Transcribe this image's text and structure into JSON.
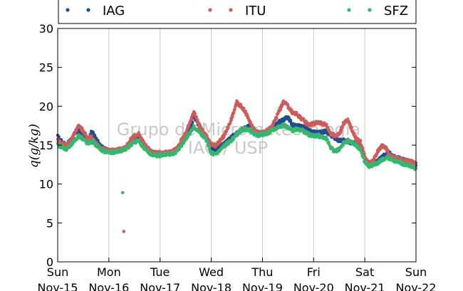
{
  "chart_data": {
    "type": "scatter",
    "ylabel": "q(g/kg)",
    "ylim": [
      0,
      30
    ],
    "yticks": [
      0,
      5,
      10,
      15,
      20,
      25,
      30
    ],
    "xlim": [
      "2015-11-15",
      "2015-11-22"
    ],
    "xticks": [
      {
        "date": "2015-11-15",
        "day": "Sun",
        "label": "Nov-15"
      },
      {
        "date": "2015-11-16",
        "day": "Mon",
        "label": "Nov-16"
      },
      {
        "date": "2015-11-17",
        "day": "Tue",
        "label": "Nov-17"
      },
      {
        "date": "2015-11-18",
        "day": "Wed",
        "label": "Nov-18"
      },
      {
        "date": "2015-11-19",
        "day": "Thu",
        "label": "Nov-19"
      },
      {
        "date": "2015-11-20",
        "day": "Fri",
        "label": "Nov-20"
      },
      {
        "date": "2015-11-21",
        "day": "Sat",
        "label": "Nov-21"
      },
      {
        "date": "2015-11-22",
        "day": "Sun",
        "label": "Nov-22"
      }
    ],
    "grid": "vertical",
    "legend_position": "top",
    "watermark": [
      "Grupo de Micrometeorologia",
      "IAG / USP"
    ],
    "series": [
      {
        "name": "IAG",
        "color": "#1f4e8c",
        "x": [
          "2015-11-15 00:00",
          "2015-11-15 02:00",
          "2015-11-15 04:00",
          "2015-11-15 06:00",
          "2015-11-15 08:00",
          "2015-11-15 10:00",
          "2015-11-15 12:00",
          "2015-11-15 14:00",
          "2015-11-15 16:00",
          "2015-11-15 18:00",
          "2015-11-15 20:00",
          "2015-11-15 22:00",
          "2015-11-16 00:00",
          "2015-11-16 02:00",
          "2015-11-16 04:00",
          "2015-11-16 06:00",
          "2015-11-16 08:00",
          "2015-11-16 10:00",
          "2015-11-16 12:00",
          "2015-11-16 14:00",
          "2015-11-16 16:00",
          "2015-11-16 18:00",
          "2015-11-16 20:00",
          "2015-11-16 22:00",
          "2015-11-17 00:00",
          "2015-11-17 02:00",
          "2015-11-17 04:00",
          "2015-11-17 06:00",
          "2015-11-17 08:00",
          "2015-11-17 10:00",
          "2015-11-17 12:00",
          "2015-11-17 14:00",
          "2015-11-17 16:00",
          "2015-11-17 18:00",
          "2015-11-17 20:00",
          "2015-11-17 22:00",
          "2015-11-18 00:00",
          "2015-11-18 02:00",
          "2015-11-18 04:00",
          "2015-11-18 06:00",
          "2015-11-18 08:00",
          "2015-11-18 10:00",
          "2015-11-18 12:00",
          "2015-11-18 14:00",
          "2015-11-18 16:00",
          "2015-11-18 18:00",
          "2015-11-18 20:00",
          "2015-11-18 22:00",
          "2015-11-19 00:00",
          "2015-11-19 02:00",
          "2015-11-19 04:00",
          "2015-11-19 06:00",
          "2015-11-19 08:00",
          "2015-11-19 10:00",
          "2015-11-19 12:00",
          "2015-11-19 14:00",
          "2015-11-19 16:00",
          "2015-11-19 18:00",
          "2015-11-19 20:00",
          "2015-11-19 22:00",
          "2015-11-20 00:00",
          "2015-11-20 02:00",
          "2015-11-20 04:00",
          "2015-11-20 06:00",
          "2015-11-20 08:00",
          "2015-11-20 10:00",
          "2015-11-20 12:00",
          "2015-11-20 14:00",
          "2015-11-20 16:00",
          "2015-11-20 18:00",
          "2015-11-20 20:00",
          "2015-11-20 22:00",
          "2015-11-21 00:00",
          "2015-11-21 02:00",
          "2015-11-21 04:00",
          "2015-11-21 06:00",
          "2015-11-21 08:00",
          "2015-11-21 10:00",
          "2015-11-21 12:00",
          "2015-11-21 14:00",
          "2015-11-21 16:00",
          "2015-11-21 18:00",
          "2015-11-21 20:00",
          "2015-11-21 22:00",
          "2015-11-22 00:00"
        ],
        "y": [
          16.1,
          15.4,
          15.0,
          15.6,
          16.5,
          17.0,
          16.0,
          15.5,
          16.8,
          15.8,
          14.9,
          14.5,
          14.3,
          14.2,
          14.3,
          14.4,
          14.6,
          15.2,
          15.7,
          15.9,
          15.0,
          14.4,
          14.1,
          13.9,
          13.8,
          13.9,
          13.9,
          14.0,
          14.3,
          15.2,
          16.0,
          17.0,
          18.8,
          17.5,
          16.6,
          15.9,
          14.7,
          14.5,
          14.9,
          15.2,
          15.6,
          16.2,
          16.5,
          16.9,
          17.2,
          17.5,
          17.0,
          16.6,
          16.5,
          16.6,
          17.0,
          17.4,
          18.0,
          18.3,
          18.6,
          17.6,
          17.5,
          17.4,
          17.2,
          16.8,
          16.6,
          16.6,
          16.7,
          16.8,
          16.3,
          15.9,
          15.6,
          15.6,
          15.5,
          15.3,
          15.2,
          15.0,
          13.2,
          12.6,
          12.7,
          12.9,
          13.5,
          13.8,
          13.9,
          13.5,
          13.3,
          13.1,
          12.9,
          12.8,
          12.4
        ]
      },
      {
        "name": "ITU",
        "color": "#cd5c5c",
        "x": [
          "2015-11-15 00:00",
          "2015-11-15 02:00",
          "2015-11-15 04:00",
          "2015-11-15 06:00",
          "2015-11-15 08:00",
          "2015-11-15 10:00",
          "2015-11-15 12:00",
          "2015-11-15 14:00",
          "2015-11-15 16:00",
          "2015-11-15 18:00",
          "2015-11-15 20:00",
          "2015-11-15 22:00",
          "2015-11-16 00:00",
          "2015-11-16 02:00",
          "2015-11-16 04:00",
          "2015-11-16 06:00",
          "2015-11-16 08:00",
          "2015-11-16 10:00",
          "2015-11-16 12:00",
          "2015-11-16 14:00",
          "2015-11-16 16:00",
          "2015-11-16 18:00",
          "2015-11-16 20:00",
          "2015-11-16 22:00",
          "2015-11-17 00:00",
          "2015-11-17 02:00",
          "2015-11-17 04:00",
          "2015-11-17 06:00",
          "2015-11-17 08:00",
          "2015-11-17 10:00",
          "2015-11-17 12:00",
          "2015-11-17 14:00",
          "2015-11-17 16:00",
          "2015-11-17 18:00",
          "2015-11-17 20:00",
          "2015-11-17 22:00",
          "2015-11-18 00:00",
          "2015-11-18 02:00",
          "2015-11-18 04:00",
          "2015-11-18 06:00",
          "2015-11-18 08:00",
          "2015-11-18 10:00",
          "2015-11-18 12:00",
          "2015-11-18 14:00",
          "2015-11-18 16:00",
          "2015-11-18 18:00",
          "2015-11-18 20:00",
          "2015-11-18 22:00",
          "2015-11-19 00:00",
          "2015-11-19 02:00",
          "2015-11-19 04:00",
          "2015-11-19 06:00",
          "2015-11-19 08:00",
          "2015-11-19 10:00",
          "2015-11-19 12:00",
          "2015-11-19 14:00",
          "2015-11-19 16:00",
          "2015-11-19 18:00",
          "2015-11-19 20:00",
          "2015-11-19 22:00",
          "2015-11-20 00:00",
          "2015-11-20 02:00",
          "2015-11-20 04:00",
          "2015-11-20 06:00",
          "2015-11-20 08:00",
          "2015-11-20 10:00",
          "2015-11-20 12:00",
          "2015-11-20 14:00",
          "2015-11-20 16:00",
          "2015-11-20 18:00",
          "2015-11-20 20:00",
          "2015-11-20 22:00",
          "2015-11-21 00:00",
          "2015-11-21 02:00",
          "2015-11-21 04:00",
          "2015-11-21 06:00",
          "2015-11-21 08:00",
          "2015-11-21 10:00",
          "2015-11-21 12:00",
          "2015-11-21 14:00",
          "2015-11-21 16:00",
          "2015-11-21 18:00",
          "2015-11-21 20:00",
          "2015-11-21 22:00",
          "2015-11-22 00:00",
          "2015-11-16 07:00"
        ],
        "y": [
          15.6,
          15.2,
          15.0,
          15.5,
          16.6,
          17.5,
          16.8,
          15.9,
          16.0,
          15.2,
          14.6,
          14.4,
          14.3,
          14.3,
          14.4,
          14.5,
          14.8,
          15.6,
          16.2,
          16.4,
          15.5,
          14.6,
          14.2,
          14.0,
          14.0,
          14.0,
          14.1,
          14.2,
          14.6,
          15.6,
          16.5,
          18.0,
          19.2,
          17.8,
          16.8,
          16.0,
          15.0,
          14.9,
          15.5,
          16.2,
          17.4,
          18.8,
          20.5,
          20.0,
          19.3,
          18.0,
          17.0,
          16.6,
          16.6,
          16.8,
          17.3,
          18.2,
          19.5,
          20.6,
          20.0,
          19.2,
          19.0,
          18.5,
          18.0,
          17.6,
          17.8,
          17.9,
          17.8,
          17.6,
          16.5,
          16.2,
          16.4,
          17.8,
          18.2,
          17.0,
          15.8,
          15.4,
          13.6,
          12.6,
          13.0,
          14.2,
          14.9,
          14.6,
          13.6,
          13.4,
          13.2,
          13.0,
          13.0,
          12.9,
          12.6,
          3.9
        ]
      },
      {
        "name": "SFZ",
        "color": "#3cb371",
        "x": [
          "2015-11-15 00:00",
          "2015-11-15 02:00",
          "2015-11-15 04:00",
          "2015-11-15 06:00",
          "2015-11-15 08:00",
          "2015-11-15 10:00",
          "2015-11-15 12:00",
          "2015-11-15 14:00",
          "2015-11-15 16:00",
          "2015-11-15 18:00",
          "2015-11-15 20:00",
          "2015-11-15 22:00",
          "2015-11-16 00:00",
          "2015-11-16 02:00",
          "2015-11-16 04:00",
          "2015-11-16 06:00",
          "2015-11-16 08:00",
          "2015-11-16 10:00",
          "2015-11-16 12:00",
          "2015-11-16 14:00",
          "2015-11-16 16:00",
          "2015-11-16 18:00",
          "2015-11-16 20:00",
          "2015-11-16 22:00",
          "2015-11-17 00:00",
          "2015-11-17 02:00",
          "2015-11-17 04:00",
          "2015-11-17 06:00",
          "2015-11-17 08:00",
          "2015-11-17 10:00",
          "2015-11-17 12:00",
          "2015-11-17 14:00",
          "2015-11-17 16:00",
          "2015-11-17 18:00",
          "2015-11-17 20:00",
          "2015-11-17 22:00",
          "2015-11-18 00:00",
          "2015-11-18 02:00",
          "2015-11-18 04:00",
          "2015-11-18 06:00",
          "2015-11-18 08:00",
          "2015-11-18 10:00",
          "2015-11-18 12:00",
          "2015-11-18 14:00",
          "2015-11-18 16:00",
          "2015-11-18 18:00",
          "2015-11-18 20:00",
          "2015-11-18 22:00",
          "2015-11-19 00:00",
          "2015-11-19 02:00",
          "2015-11-19 04:00",
          "2015-11-19 06:00",
          "2015-11-19 08:00",
          "2015-11-19 10:00",
          "2015-11-19 12:00",
          "2015-11-19 14:00",
          "2015-11-19 16:00",
          "2015-11-19 18:00",
          "2015-11-19 20:00",
          "2015-11-19 22:00",
          "2015-11-20 00:00",
          "2015-11-20 02:00",
          "2015-11-20 04:00",
          "2015-11-20 06:00",
          "2015-11-20 08:00",
          "2015-11-20 10:00",
          "2015-11-20 12:00",
          "2015-11-20 14:00",
          "2015-11-20 16:00",
          "2015-11-20 18:00",
          "2015-11-20 20:00",
          "2015-11-20 22:00",
          "2015-11-21 00:00",
          "2015-11-21 02:00",
          "2015-11-21 04:00",
          "2015-11-21 06:00",
          "2015-11-21 08:00",
          "2015-11-21 10:00",
          "2015-11-21 12:00",
          "2015-11-21 14:00",
          "2015-11-21 16:00",
          "2015-11-21 18:00",
          "2015-11-21 20:00",
          "2015-11-21 22:00",
          "2015-11-22 00:00",
          "2015-11-16 06:30"
        ],
        "y": [
          15.0,
          14.8,
          14.5,
          14.9,
          15.6,
          16.2,
          15.8,
          15.2,
          15.5,
          15.0,
          14.5,
          14.2,
          14.1,
          14.1,
          14.2,
          14.3,
          14.5,
          15.0,
          15.4,
          15.6,
          14.8,
          14.2,
          13.8,
          13.7,
          13.7,
          13.8,
          13.8,
          13.9,
          14.2,
          15.0,
          15.8,
          16.6,
          17.3,
          16.8,
          16.2,
          15.6,
          13.9,
          13.8,
          14.3,
          14.9,
          15.3,
          15.8,
          16.4,
          16.9,
          17.1,
          17.0,
          16.5,
          16.3,
          16.4,
          16.5,
          16.8,
          17.1,
          17.4,
          17.6,
          17.2,
          16.9,
          17.1,
          17.0,
          16.7,
          16.3,
          16.2,
          16.2,
          16.1,
          15.9,
          14.7,
          14.2,
          14.5,
          15.2,
          15.6,
          15.3,
          15.0,
          14.4,
          12.8,
          12.3,
          12.5,
          12.7,
          13.1,
          13.4,
          13.3,
          13.0,
          12.8,
          12.6,
          12.5,
          12.3,
          12.0,
          8.9
        ]
      }
    ]
  }
}
